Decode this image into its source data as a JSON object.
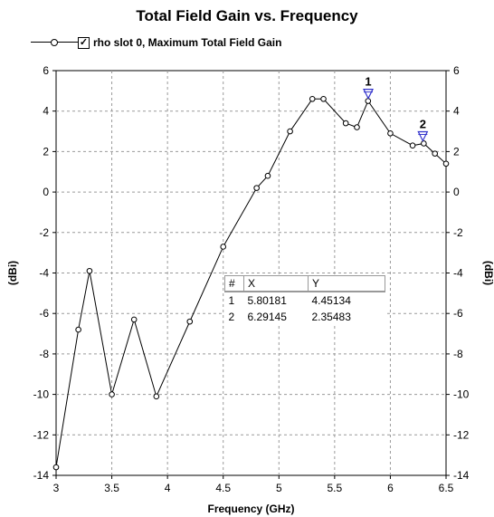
{
  "chart_data": {
    "type": "line",
    "title": "Total Field Gain vs. Frequency",
    "xlabel": "Frequency (GHz)",
    "ylabel": "(dBi)",
    "ylabel_right": "(dBi)",
    "xlim": [
      3,
      6.5
    ],
    "ylim": [
      -14,
      6
    ],
    "xticks": [
      3,
      3.5,
      4,
      4.5,
      5,
      5.5,
      6,
      6.5
    ],
    "xtick_labels": [
      "3",
      "3.5",
      "4",
      "4.5",
      "5",
      "5.5",
      "6",
      "6.5"
    ],
    "yticks": [
      -14,
      -12,
      -10,
      -8,
      -6,
      -4,
      -2,
      0,
      2,
      4,
      6
    ],
    "ytick_labels": [
      "-14",
      "-12",
      "-10",
      "-8",
      "-6",
      "-4",
      "-2",
      "0",
      "2",
      "4",
      "6"
    ],
    "grid": true,
    "legend_position": "top-left",
    "series": [
      {
        "name": "rho slot 0, Maximum Total Field Gain",
        "color": "#000000",
        "marker": "circle",
        "x": [
          3.0,
          3.2,
          3.3,
          3.5,
          3.7,
          3.9,
          4.2,
          4.5,
          4.8,
          4.9,
          5.1,
          5.3,
          5.4,
          5.6,
          5.7,
          5.8,
          6.0,
          6.2,
          6.3,
          6.4,
          6.5
        ],
        "y": [
          -13.6,
          -6.8,
          -3.9,
          -10.0,
          -6.3,
          -10.1,
          -6.4,
          -2.7,
          0.2,
          0.8,
          3.0,
          4.6,
          4.6,
          3.4,
          3.2,
          4.5,
          2.9,
          2.3,
          2.4,
          1.9,
          1.4
        ]
      }
    ],
    "markers": [
      {
        "id": "1",
        "x": 5.80181,
        "y": 4.45134
      },
      {
        "id": "2",
        "x": 6.29145,
        "y": 2.35483
      }
    ],
    "marker_color": "#3333cc"
  },
  "marker_table": {
    "headers": [
      "#",
      "X",
      "Y"
    ],
    "rows": [
      [
        "1",
        "5.80181",
        "4.45134"
      ],
      [
        "2",
        "6.29145",
        "2.35483"
      ]
    ]
  }
}
